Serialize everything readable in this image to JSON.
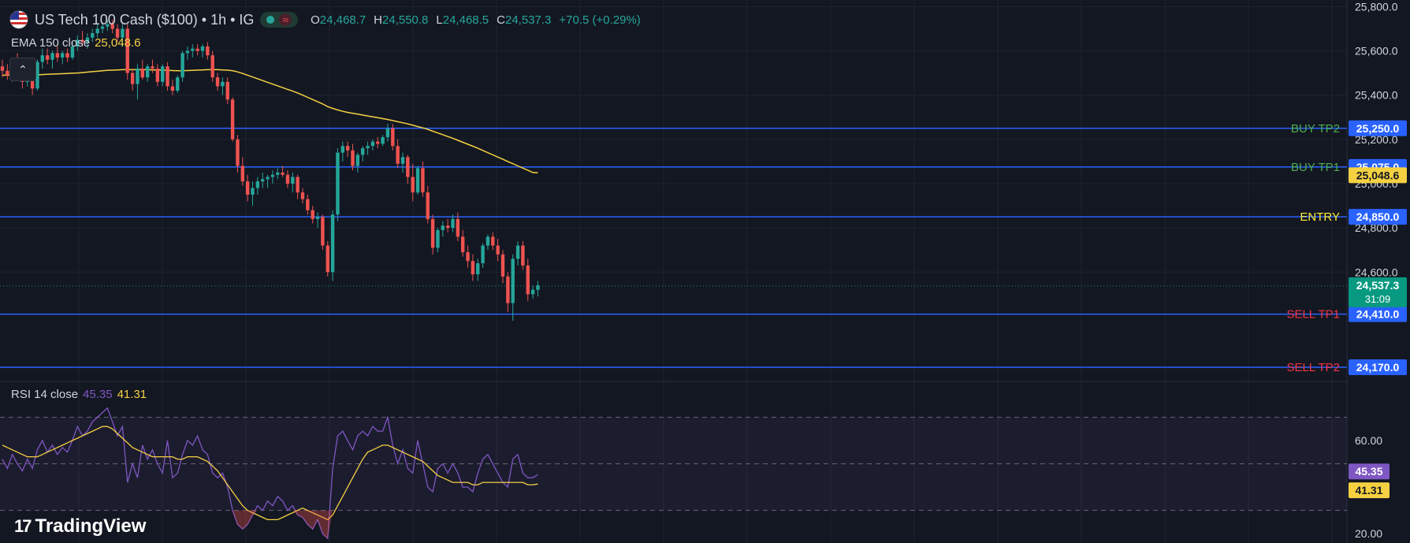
{
  "header": {
    "symbol": "US Tech 100 Cash ($100) • 1h • IG",
    "flag_icon": "us-flag-icon",
    "status_wave": "≈",
    "ohlc": [
      {
        "key": "O",
        "value": "24,468.7"
      },
      {
        "key": "H",
        "value": "24,550.8"
      },
      {
        "key": "L",
        "value": "24,468.5"
      },
      {
        "key": "C",
        "value": "24,537.3"
      }
    ],
    "change": "+70.5 (+0.29%)",
    "up_color": "#26a69a",
    "down_color": "#ef5350"
  },
  "ema": {
    "label": "EMA 150 close",
    "value": "25,048.6",
    "color": "#f5d142"
  },
  "collapse_icon": "⌃",
  "rsi": {
    "label": "RSI 14 close",
    "value": "45.35",
    "ma_value": "41.31",
    "color": "#7e57c2",
    "ma_color": "#f5d142"
  },
  "logo": {
    "text": "TradingView",
    "mark": "17"
  },
  "chart_data": [
    {
      "type": "candlestick",
      "ylim": [
        24120,
        25830
      ],
      "y_ticks": [
        {
          "value": 25800,
          "label": "25,800.0"
        },
        {
          "value": 25600,
          "label": "25,600.0"
        },
        {
          "value": 25400,
          "label": "25,400.0"
        },
        {
          "value": 25200,
          "label": "25,200.0"
        },
        {
          "value": 25000,
          "label": "25,000.0"
        },
        {
          "value": 24800,
          "label": "24,800.0"
        },
        {
          "value": 24600,
          "label": "24,600.0"
        }
      ],
      "horizontal_lines": [
        {
          "label": "BUY TP2",
          "value": 25250,
          "price_label": "25,250.0",
          "label_color": "#4caf50"
        },
        {
          "label": "BUY TP1",
          "value": 25075,
          "price_label": "25,075.0",
          "label_color": "#4caf50"
        },
        {
          "label": "ENTRY",
          "value": 24850,
          "price_label": "24,850.0",
          "label_color": "#ffeb3b"
        },
        {
          "label": "SELL TP1",
          "value": 24410,
          "price_label": "24,410.0",
          "label_color": "#f23645"
        },
        {
          "label": "SELL TP2",
          "value": 24170,
          "price_label": "24,170.0",
          "label_color": "#f23645"
        }
      ],
      "line_color": "#2962ff",
      "last_price": {
        "value": 24537.3,
        "label": "24,537.3",
        "countdown": "31:09",
        "color": "#089981"
      },
      "ema_last": {
        "value": 25048.6,
        "label": "25,048.6"
      },
      "candles": [
        [
          25530,
          25560,
          25480,
          25510
        ],
        [
          25510,
          25540,
          25470,
          25490
        ],
        [
          25490,
          25550,
          25460,
          25530
        ],
        [
          25530,
          25590,
          25500,
          25520
        ],
        [
          25520,
          25540,
          25430,
          25460
        ],
        [
          25460,
          25530,
          25440,
          25510
        ],
        [
          25510,
          25530,
          25400,
          25430
        ],
        [
          25430,
          25560,
          25420,
          25550
        ],
        [
          25550,
          25610,
          25520,
          25580
        ],
        [
          25580,
          25610,
          25540,
          25560
        ],
        [
          25560,
          25600,
          25520,
          25590
        ],
        [
          25590,
          25620,
          25550,
          25570
        ],
        [
          25570,
          25600,
          25540,
          25590
        ],
        [
          25590,
          25610,
          25550,
          25570
        ],
        [
          25570,
          25640,
          25560,
          25620
        ],
        [
          25620,
          25670,
          25600,
          25650
        ],
        [
          25650,
          25690,
          25620,
          25640
        ],
        [
          25640,
          25680,
          25610,
          25660
        ],
        [
          25660,
          25700,
          25640,
          25680
        ],
        [
          25680,
          25720,
          25660,
          25700
        ],
        [
          25700,
          25730,
          25680,
          25710
        ],
        [
          25710,
          25740,
          25690,
          25720
        ],
        [
          25720,
          25740,
          25680,
          25700
        ],
        [
          25700,
          25720,
          25640,
          25660
        ],
        [
          25660,
          25720,
          25620,
          25700
        ],
        [
          25700,
          25720,
          25470,
          25500
        ],
        [
          25500,
          25520,
          25420,
          25450
        ],
        [
          25450,
          25540,
          25380,
          25520
        ],
        [
          25520,
          25560,
          25470,
          25480
        ],
        [
          25480,
          25540,
          25460,
          25530
        ],
        [
          25530,
          25560,
          25500,
          25520
        ],
        [
          25520,
          25540,
          25440,
          25460
        ],
        [
          25460,
          25540,
          25440,
          25530
        ],
        [
          25530,
          25550,
          25420,
          25440
        ],
        [
          25440,
          25470,
          25400,
          25420
        ],
        [
          25420,
          25490,
          25410,
          25480
        ],
        [
          25480,
          25600,
          25460,
          25590
        ],
        [
          25590,
          25620,
          25560,
          25600
        ],
        [
          25600,
          25630,
          25570,
          25610
        ],
        [
          25610,
          25630,
          25580,
          25600
        ],
        [
          25600,
          25630,
          25570,
          25620
        ],
        [
          25620,
          25640,
          25560,
          25580
        ],
        [
          25580,
          25600,
          25460,
          25480
        ],
        [
          25480,
          25500,
          25420,
          25440
        ],
        [
          25440,
          25480,
          25400,
          25460
        ],
        [
          25460,
          25480,
          25360,
          25380
        ],
        [
          25380,
          25390,
          25190,
          25200
        ],
        [
          25200,
          25220,
          25050,
          25080
        ],
        [
          25080,
          25120,
          24990,
          25010
        ],
        [
          25010,
          25040,
          24920,
          24950
        ],
        [
          24950,
          25010,
          24900,
          24980
        ],
        [
          24980,
          25030,
          24950,
          25010
        ],
        [
          25010,
          25050,
          24980,
          25020
        ],
        [
          25020,
          25040,
          24980,
          25030
        ],
        [
          25030,
          25060,
          25000,
          25040
        ],
        [
          25040,
          25070,
          25020,
          25050
        ],
        [
          25050,
          25080,
          25030,
          25040
        ],
        [
          25040,
          25060,
          24980,
          25000
        ],
        [
          25000,
          25050,
          24960,
          25030
        ],
        [
          25030,
          25040,
          24930,
          24960
        ],
        [
          24960,
          24980,
          24910,
          24930
        ],
        [
          24930,
          24950,
          24860,
          24880
        ],
        [
          24880,
          24900,
          24820,
          24840
        ],
        [
          24840,
          24870,
          24800,
          24850
        ],
        [
          24850,
          24860,
          24700,
          24720
        ],
        [
          24720,
          24740,
          24580,
          24600
        ],
        [
          24600,
          24880,
          24560,
          24860
        ],
        [
          24860,
          25160,
          24830,
          25140
        ],
        [
          25140,
          25190,
          25100,
          25170
        ],
        [
          25170,
          25190,
          25120,
          25150
        ],
        [
          25150,
          25180,
          25060,
          25080
        ],
        [
          25080,
          25140,
          25050,
          25130
        ],
        [
          25130,
          25170,
          25100,
          25160
        ],
        [
          25160,
          25190,
          25130,
          25170
        ],
        [
          25170,
          25200,
          25150,
          25190
        ],
        [
          25190,
          25210,
          25160,
          25180
        ],
        [
          25180,
          25220,
          25170,
          25210
        ],
        [
          25210,
          25270,
          25190,
          25250
        ],
        [
          25250,
          25270,
          25150,
          25170
        ],
        [
          25170,
          25200,
          25070,
          25090
        ],
        [
          25090,
          25140,
          25050,
          25120
        ],
        [
          25120,
          25130,
          25000,
          25030
        ],
        [
          25030,
          25090,
          24920,
          24960
        ],
        [
          24960,
          25080,
          24950,
          25070
        ],
        [
          25070,
          25100,
          24940,
          24960
        ],
        [
          24960,
          24990,
          24820,
          24840
        ],
        [
          24840,
          24860,
          24680,
          24710
        ],
        [
          24710,
          24800,
          24690,
          24790
        ],
        [
          24790,
          24830,
          24760,
          24810
        ],
        [
          24810,
          24840,
          24780,
          24800
        ],
        [
          24800,
          24860,
          24780,
          24840
        ],
        [
          24840,
          24870,
          24740,
          24760
        ],
        [
          24760,
          24790,
          24670,
          24690
        ],
        [
          24690,
          24720,
          24620,
          24650
        ],
        [
          24650,
          24680,
          24560,
          24590
        ],
        [
          24590,
          24660,
          24560,
          24640
        ],
        [
          24640,
          24730,
          24620,
          24720
        ],
        [
          24720,
          24770,
          24700,
          24760
        ],
        [
          24760,
          24780,
          24700,
          24720
        ],
        [
          24720,
          24750,
          24650,
          24680
        ],
        [
          24680,
          24700,
          24550,
          24580
        ],
        [
          24580,
          24600,
          24420,
          24460
        ],
        [
          24460,
          24680,
          24380,
          24660
        ],
        [
          24660,
          24740,
          24630,
          24720
        ],
        [
          24720,
          24740,
          24610,
          24630
        ],
        [
          24630,
          24660,
          24470,
          24500
        ],
        [
          24500,
          24540,
          24480,
          24520
        ],
        [
          24520,
          24560,
          24490,
          24540
        ]
      ],
      "ema_values": [
        25490,
        25490,
        25490,
        25491,
        25491,
        25491,
        25492,
        25492,
        25493,
        25494,
        25495,
        25496,
        25497,
        25498,
        25499,
        25500,
        25502,
        25504,
        25506,
        25508,
        25510,
        25512,
        25513,
        25514,
        25515,
        25515,
        25515,
        25515,
        25515,
        25515,
        25514,
        25514,
        25513,
        25512,
        25511,
        25510,
        25510,
        25511,
        25512,
        25513,
        25514,
        25515,
        25515,
        25515,
        25514,
        25513,
        25510,
        25505,
        25498,
        25490,
        25482,
        25474,
        25466,
        25458,
        25450,
        25442,
        25434,
        25426,
        25418,
        25410,
        25400,
        25390,
        25380,
        25370,
        25360,
        25348,
        25340,
        25333,
        25327,
        25322,
        25318,
        25314,
        25310,
        25306,
        25302,
        25298,
        25294,
        25290,
        25285,
        25280,
        25275,
        25270,
        25264,
        25258,
        25252,
        25245,
        25237,
        25229,
        25221,
        25213,
        25205,
        25196,
        25187,
        25178,
        25169,
        25160,
        25150,
        25140,
        25130,
        25120,
        25110,
        25100,
        25090,
        25080,
        25070,
        25060,
        25050,
        25049
      ]
    },
    {
      "type": "line",
      "title": "RSI 14 close",
      "ylim": [
        16,
        84
      ],
      "y_ticks": [
        {
          "value": 60,
          "label": "60.00"
        },
        {
          "value": 20,
          "label": "20.00"
        }
      ],
      "bands": [
        70,
        50,
        30
      ],
      "series": [
        {
          "name": "RSI 14 close",
          "color": "#7e57c2",
          "values": [
            52,
            48,
            54,
            50,
            47,
            52,
            48,
            56,
            60,
            55,
            58,
            54,
            57,
            55,
            60,
            66,
            62,
            64,
            68,
            70,
            72,
            74,
            68,
            62,
            66,
            42,
            50,
            44,
            58,
            52,
            56,
            50,
            46,
            60,
            44,
            46,
            54,
            60,
            58,
            62,
            56,
            54,
            46,
            44,
            46,
            40,
            30,
            24,
            22,
            24,
            28,
            32,
            30,
            34,
            32,
            36,
            34,
            30,
            32,
            28,
            27,
            24,
            22,
            26,
            20,
            18,
            48,
            62,
            64,
            60,
            56,
            62,
            64,
            62,
            66,
            64,
            64,
            70,
            58,
            50,
            56,
            48,
            46,
            60,
            50,
            40,
            38,
            48,
            50,
            46,
            50,
            46,
            40,
            40,
            38,
            46,
            52,
            54,
            50,
            46,
            42,
            40,
            52,
            54,
            46,
            44,
            44,
            45.35
          ]
        },
        {
          "name": "RSI-based MA",
          "color": "#f5d142",
          "values": [
            58,
            57,
            56,
            55,
            54,
            53,
            53,
            53,
            54,
            55,
            56,
            57,
            58,
            59,
            60,
            61,
            62,
            63,
            64,
            65,
            66,
            66,
            65,
            63,
            61,
            59,
            57,
            56,
            55,
            54,
            53,
            53,
            53,
            53,
            53,
            52,
            52,
            53,
            53,
            53,
            52,
            51,
            49,
            47,
            44,
            41,
            38,
            35,
            32,
            30,
            29,
            28,
            27,
            26,
            26,
            26,
            27,
            28,
            29,
            30,
            31,
            30,
            29,
            28,
            27,
            26,
            28,
            32,
            36,
            40,
            44,
            48,
            52,
            55,
            56,
            57,
            58,
            58,
            57,
            56,
            55,
            54,
            53,
            52,
            51,
            49,
            47,
            45,
            44,
            43,
            42,
            42,
            42,
            42,
            41,
            41,
            42,
            42,
            42,
            42,
            42,
            42,
            42,
            42,
            42,
            41,
            41,
            41.31
          ]
        }
      ],
      "last_labels": [
        {
          "series": "RSI 14 close",
          "label": "45.35",
          "color": "#7e57c2"
        },
        {
          "series": "RSI-based MA",
          "label": "41.31",
          "color": "#f5d142"
        }
      ]
    }
  ]
}
